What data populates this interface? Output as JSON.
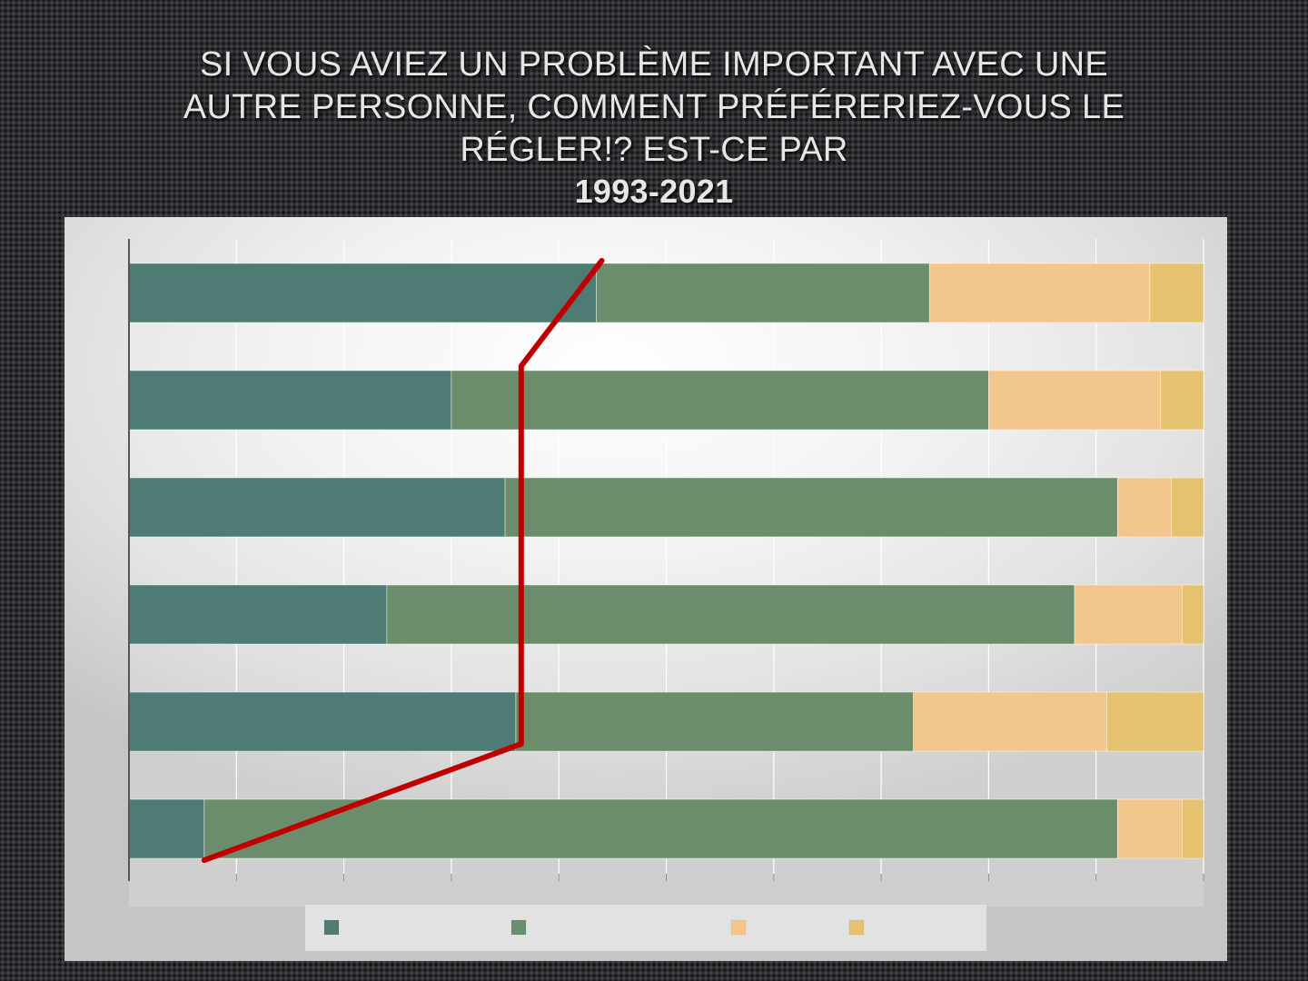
{
  "slide": {
    "title": "SI VOUS AVIEZ UN PROBLÈME IMPORTANT AVEC UNE AUTRE PERSONNE, COMMENT PRÉFÉRERIEZ-VOUS LE RÉGLER!? EST-CE PAR",
    "years": "1993-2021"
  },
  "colors": {
    "series": [
      "#4e7b73",
      "#6c8d6b",
      "#f2c68d",
      "#e5c270"
    ],
    "trend_line": "#c00000",
    "gridline": "#ffffff",
    "axis": "#555555"
  },
  "chart_data": {
    "type": "bar",
    "orientation": "horizontal",
    "stacked": true,
    "xlim": [
      0,
      100
    ],
    "grid": true,
    "legend_position": "bottom",
    "series": [
      {
        "values": [
          43.5,
          30,
          35,
          24,
          36,
          7
        ]
      },
      {
        "values": [
          31,
          50,
          57,
          64,
          37,
          85
        ]
      },
      {
        "values": [
          20.5,
          16,
          5,
          10,
          18,
          6
        ]
      },
      {
        "values": [
          5,
          4,
          3,
          2,
          9,
          2
        ]
      }
    ],
    "trend_line": {
      "color": "#c00000",
      "values": [
        44,
        36.5,
        36.5,
        36.5,
        36.5,
        7
      ]
    }
  }
}
